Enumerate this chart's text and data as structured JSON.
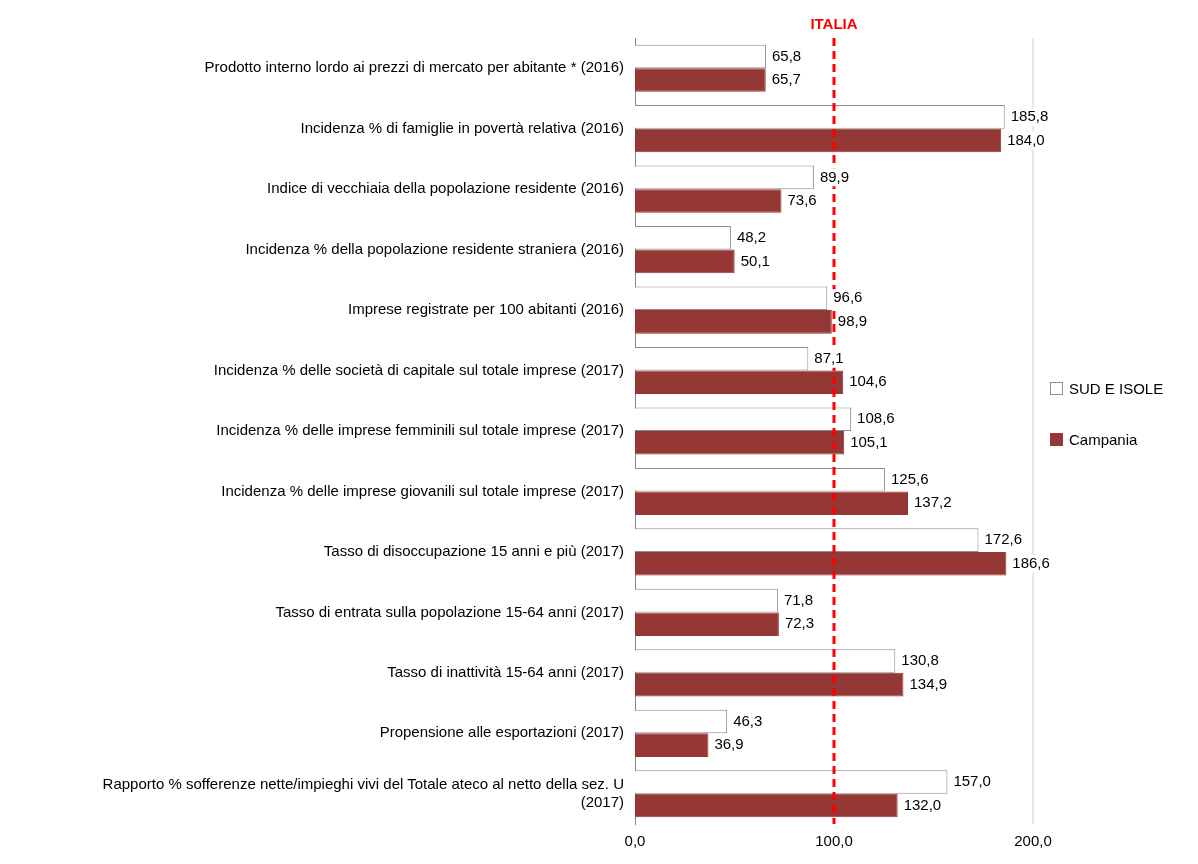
{
  "chart_data": {
    "type": "bar",
    "orientation": "horizontal",
    "categories": [
      "Prodotto interno lordo ai prezzi di mercato per abitante * (2016)",
      "Incidenza % di famiglie in povertà relativa (2016)",
      "Indice di vecchiaia della popolazione residente (2016)",
      "Incidenza % della popolazione residente straniera (2016)",
      "Imprese registrate per 100 abitanti (2016)",
      "Incidenza % delle società di capitale sul totale imprese (2017)",
      "Incidenza % delle imprese femminili sul totale imprese (2017)",
      "Incidenza % delle imprese giovanili sul totale imprese (2017)",
      "Tasso di disoccupazione 15 anni e più (2017)",
      "Tasso di entrata sulla popolazione 15-64 anni (2017)",
      "Tasso di inattività 15-64 anni (2017)",
      "Propensione alle esportazioni (2017)",
      "Rapporto % sofferenze nette/impieghi vivi del Totale ateco al netto della sez. U (2017)"
    ],
    "series": [
      {
        "name": "SUD E ISOLE",
        "color": "#ffffff",
        "values": [
          65.8,
          185.8,
          89.9,
          48.2,
          96.6,
          87.1,
          108.6,
          125.6,
          172.6,
          71.8,
          130.8,
          46.3,
          157.0
        ],
        "value_labels": [
          "65,8",
          "185,8",
          "89,9",
          "48,2",
          "96,6",
          "87,1",
          "108,6",
          "125,6",
          "172,6",
          "71,8",
          "130,8",
          "46,3",
          "157,0"
        ]
      },
      {
        "name": "Campania",
        "color": "#953735",
        "values": [
          65.7,
          184.0,
          73.6,
          50.1,
          98.9,
          104.6,
          105.1,
          137.2,
          186.6,
          72.3,
          134.9,
          36.9,
          132.0
        ],
        "value_labels": [
          "65,7",
          "184,0",
          "73,6",
          "50,1",
          "98,9",
          "104,6",
          "105,1",
          "137,2",
          "186,6",
          "72,3",
          "134,9",
          "36,9",
          "132,0"
        ]
      }
    ],
    "xlim": [
      0,
      200
    ],
    "xticks": [
      {
        "value": 0,
        "label": "0,0"
      },
      {
        "value": 100,
        "label": "100,0"
      },
      {
        "value": 200,
        "label": "200,0"
      }
    ],
    "legend": "right",
    "ref_lines": [
      {
        "axis": "x",
        "value": 100,
        "label": "ITALIA",
        "color": "#ff0000",
        "line_style": "dashed"
      }
    ]
  }
}
